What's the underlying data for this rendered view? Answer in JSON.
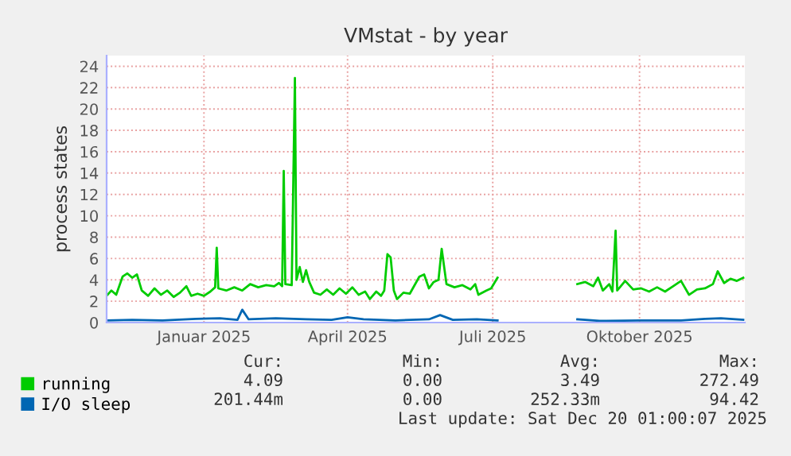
{
  "chart_data": {
    "type": "line",
    "title": "VMstat - by year",
    "ylabel": "process states",
    "xlim": [
      "2024-11-15",
      "2025-12-20"
    ],
    "xticks": [
      {
        "value": "2025-01-15",
        "label": "Januar 2025"
      },
      {
        "value": "2025-04-15",
        "label": "April 2025"
      },
      {
        "value": "2025-07-15",
        "label": "Juli 2025"
      },
      {
        "value": "2025-10-15",
        "label": "Oktober 2025"
      }
    ],
    "ylim": [
      0,
      25
    ],
    "yticks": [
      0,
      2,
      4,
      6,
      8,
      10,
      12,
      14,
      16,
      18,
      20,
      22,
      24
    ],
    "grid": true,
    "legend": "bottom",
    "marker": "none",
    "line_style": "solid",
    "series": [
      {
        "name": "running",
        "color": "#00cc00",
        "x": [
          "2024-11-15",
          "2024-11-18",
          "2024-11-21",
          "2024-11-25",
          "2024-11-28",
          "2024-12-01",
          "2024-12-04",
          "2024-12-07",
          "2024-12-11",
          "2024-12-15",
          "2024-12-19",
          "2024-12-23",
          "2024-12-27",
          "2024-12-31",
          "2025-01-04",
          "2025-01-07",
          "2025-01-11",
          "2025-01-15",
          "2025-01-19",
          "2025-01-22",
          "2025-01-23",
          "2025-01-24",
          "2025-01-29",
          "2025-02-03",
          "2025-02-08",
          "2025-02-13",
          "2025-02-18",
          "2025-02-23",
          "2025-02-28",
          "2025-03-03",
          "2025-03-05",
          "2025-03-06",
          "2025-03-07",
          "2025-03-11",
          "2025-03-13",
          "2025-03-14",
          "2025-03-16",
          "2025-03-18",
          "2025-03-20",
          "2025-03-22",
          "2025-03-25",
          "2025-03-29",
          "2025-04-02",
          "2025-04-06",
          "2025-04-10",
          "2025-04-14",
          "2025-04-18",
          "2025-04-22",
          "2025-04-26",
          "2025-04-29",
          "2025-05-03",
          "2025-05-06",
          "2025-05-08",
          "2025-05-10",
          "2025-05-12",
          "2025-05-14",
          "2025-05-16",
          "2025-05-20",
          "2025-05-24",
          "2025-05-27",
          "2025-05-30",
          "2025-06-02",
          "2025-06-05",
          "2025-06-08",
          "2025-06-11",
          "2025-06-13",
          "2025-06-16",
          "2025-06-21",
          "2025-06-26",
          "2025-07-01",
          "2025-07-04",
          "2025-07-06",
          "2025-07-11",
          "2025-07-14",
          "2025-07-18",
          "2025-08-12",
          "2025-09-06",
          "2025-09-11",
          "2025-09-16",
          "2025-09-19",
          "2025-09-22",
          "2025-09-26",
          "2025-09-28",
          "2025-09-30",
          "2025-10-01",
          "2025-10-06",
          "2025-10-11",
          "2025-10-16",
          "2025-10-21",
          "2025-10-26",
          "2025-10-31",
          "2025-11-05",
          "2025-11-10",
          "2025-11-15",
          "2025-11-20",
          "2025-11-25",
          "2025-11-30",
          "2025-12-03",
          "2025-12-07",
          "2025-12-11",
          "2025-12-15",
          "2025-12-19"
        ],
        "values": [
          2.5,
          3.0,
          2.6,
          4.3,
          4.6,
          4.2,
          4.5,
          3.0,
          2.5,
          3.2,
          2.6,
          3.0,
          2.4,
          2.8,
          3.4,
          2.5,
          2.7,
          2.5,
          2.9,
          3.3,
          7.0,
          3.2,
          3.0,
          3.3,
          3.0,
          3.6,
          3.3,
          3.5,
          3.4,
          3.7,
          3.4,
          14.2,
          3.6,
          3.5,
          22.9,
          4.0,
          5.2,
          3.8,
          4.9,
          3.8,
          2.8,
          2.6,
          3.1,
          2.6,
          3.2,
          2.7,
          3.3,
          2.6,
          2.9,
          2.2,
          2.9,
          2.5,
          3.0,
          6.4,
          6.1,
          3.0,
          2.2,
          2.8,
          2.7,
          3.5,
          4.3,
          4.5,
          3.2,
          3.8,
          4.0,
          6.9,
          3.6,
          3.3,
          3.5,
          3.1,
          3.6,
          2.6,
          3.0,
          3.2,
          4.2,
          null,
          3.6,
          3.8,
          3.4,
          4.2,
          3.0,
          3.6,
          2.9,
          8.6,
          3.0,
          3.9,
          3.1,
          3.2,
          2.9,
          3.3,
          2.9,
          3.4,
          3.9,
          2.6,
          3.1,
          3.2,
          3.6,
          4.8,
          3.7,
          4.1,
          3.9,
          4.2
        ]
      },
      {
        "name": "I/O sleep",
        "color": "#0066b3",
        "x": [
          "2024-11-15",
          "2024-12-01",
          "2024-12-20",
          "2025-01-10",
          "2025-01-25",
          "2025-02-05",
          "2025-02-08",
          "2025-02-12",
          "2025-03-01",
          "2025-03-20",
          "2025-04-05",
          "2025-04-15",
          "2025-04-25",
          "2025-05-15",
          "2025-06-05",
          "2025-06-12",
          "2025-06-20",
          "2025-07-05",
          "2025-07-18",
          "2025-08-12",
          "2025-09-06",
          "2025-09-20",
          "2025-10-15",
          "2025-11-10",
          "2025-11-25",
          "2025-12-05",
          "2025-12-19"
        ],
        "values": [
          0.2,
          0.25,
          0.2,
          0.35,
          0.4,
          0.25,
          1.2,
          0.3,
          0.4,
          0.3,
          0.25,
          0.5,
          0.3,
          0.2,
          0.3,
          0.7,
          0.25,
          0.3,
          0.2,
          null,
          0.3,
          0.15,
          0.2,
          0.2,
          0.35,
          0.4,
          0.25
        ]
      }
    ],
    "annotations": [
      "Cur:",
      "Min:",
      "Avg:",
      "Max:",
      "4.09",
      "0.00",
      "3.49",
      "272.49",
      "201.44m",
      "0.00",
      "252.33m",
      "94.42",
      "Last update: Sat Dec 20 01:00:07 2025"
    ]
  }
}
